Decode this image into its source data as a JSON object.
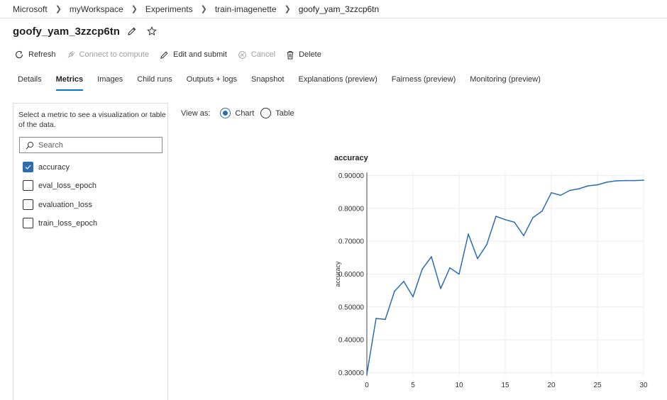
{
  "breadcrumb": [
    "Microsoft",
    "myWorkspace",
    "Experiments",
    "train-imagenette",
    "goofy_yam_3zzcp6tn"
  ],
  "title": "goofy_yam_3zzcp6tn",
  "toolbar": {
    "refresh": "Refresh",
    "connect": "Connect to compute",
    "edit": "Edit and submit",
    "cancel": "Cancel",
    "delete": "Delete"
  },
  "tabs": [
    "Details",
    "Metrics",
    "Images",
    "Child runs",
    "Outputs + logs",
    "Snapshot",
    "Explanations (preview)",
    "Fairness (preview)",
    "Monitoring (preview)"
  ],
  "active_tab": "Metrics",
  "left_panel": {
    "hint": "Select a metric to see a visualization or table of the data.",
    "search_placeholder": "Search",
    "metrics": [
      {
        "label": "accuracy",
        "checked": true
      },
      {
        "label": "eval_loss_epoch",
        "checked": false
      },
      {
        "label": "evaluation_loss",
        "checked": false
      },
      {
        "label": "train_loss_epoch",
        "checked": false
      }
    ]
  },
  "view_as": {
    "label": "View as:",
    "chart": "Chart",
    "table": "Table",
    "selected": "Chart"
  },
  "colors": {
    "accent": "#0078d4",
    "line": "#2b6cb3"
  },
  "chart_data": {
    "type": "line",
    "title": "accuracy",
    "xlabel": "",
    "ylabel": "accuracy",
    "xlim": [
      0,
      30
    ],
    "ylim": [
      0.29,
      0.91
    ],
    "x_ticks": [
      0,
      5,
      10,
      15,
      20,
      25,
      30
    ],
    "y_ticks": [
      0.3,
      0.4,
      0.5,
      0.6,
      0.7,
      0.8,
      0.9
    ],
    "y_tick_labels": [
      "0.30000",
      "0.40000",
      "0.50000",
      "0.60000",
      "0.70000",
      "0.80000",
      "0.90000"
    ],
    "grid": true,
    "series": [
      {
        "x": [
          0,
          1,
          2,
          3,
          4,
          5,
          6,
          7,
          8,
          9,
          10,
          11,
          12,
          13,
          14,
          15,
          16,
          17,
          18,
          19,
          20,
          21,
          22,
          23,
          24,
          25,
          26,
          27,
          28,
          29,
          30
        ],
        "values": [
          0.295,
          0.465,
          0.462,
          0.548,
          0.578,
          0.531,
          0.615,
          0.653,
          0.556,
          0.619,
          0.6,
          0.722,
          0.647,
          0.69,
          0.776,
          0.766,
          0.758,
          0.717,
          0.772,
          0.792,
          0.848,
          0.84,
          0.855,
          0.86,
          0.869,
          0.872,
          0.88,
          0.884,
          0.885,
          0.885,
          0.886
        ]
      }
    ]
  }
}
